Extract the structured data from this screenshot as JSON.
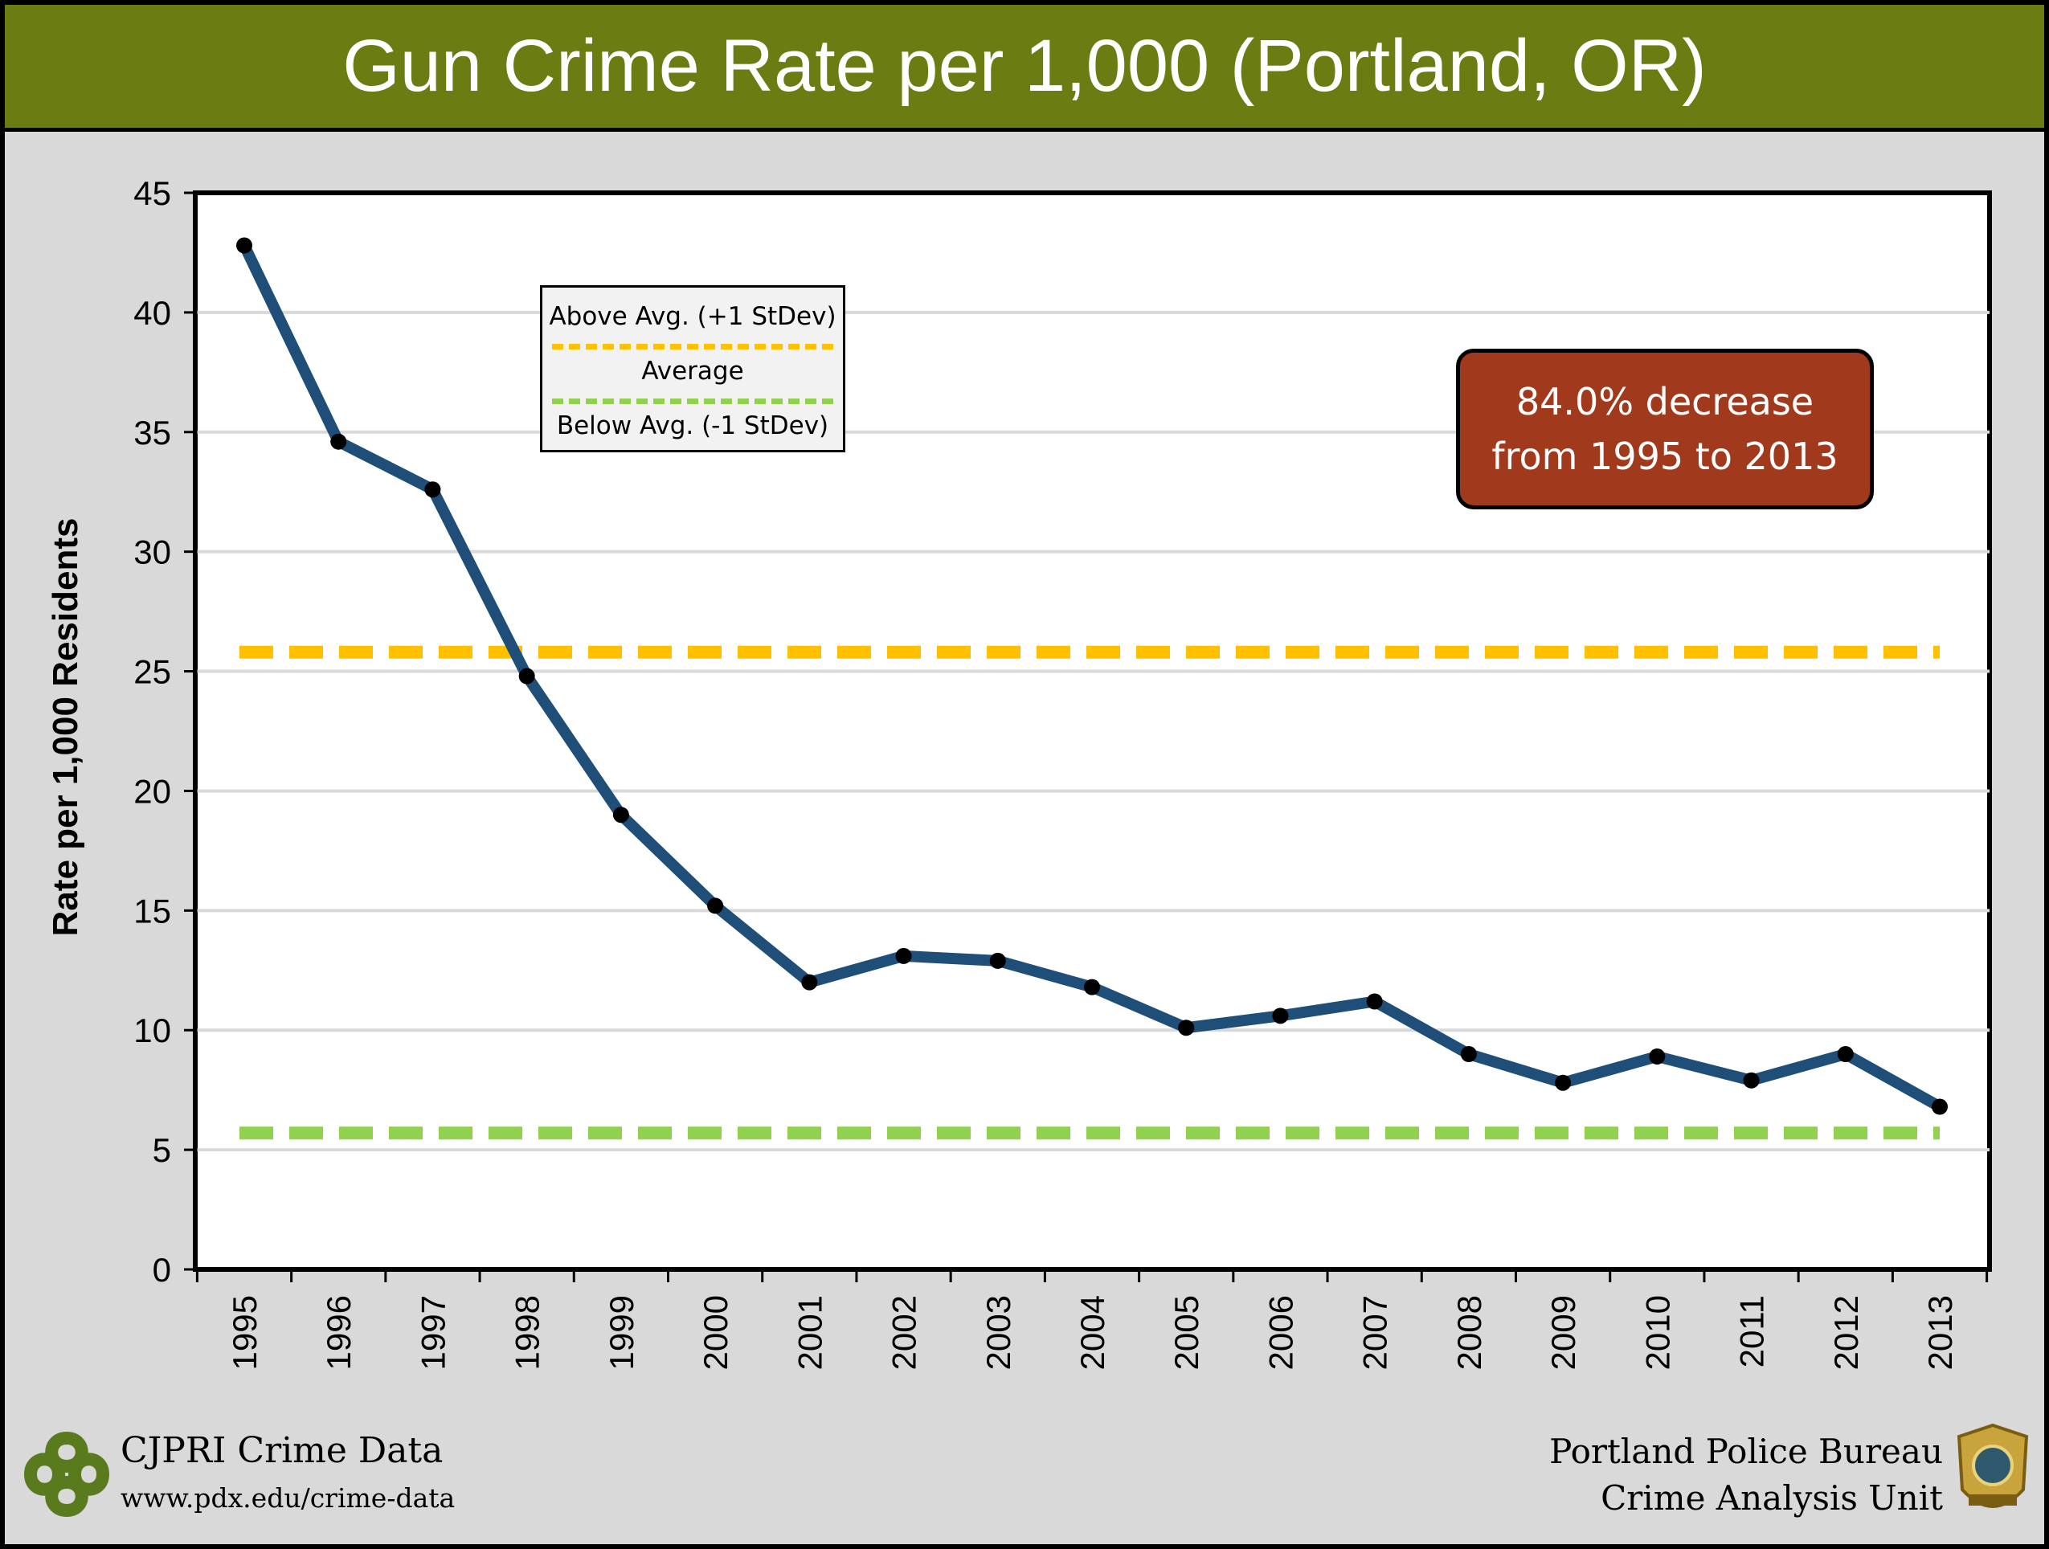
{
  "header": {
    "title": "Gun Crime Rate per 1,000 (Portland, OR)"
  },
  "chart_data": {
    "type": "line",
    "title": "Gun Crime Rate per 1,000 (Portland, OR)",
    "xlabel": "",
    "ylabel": "Rate per 1,000 Residents",
    "ylim": [
      0,
      45
    ],
    "yticks": [
      "0",
      "5",
      "10",
      "15",
      "20",
      "25",
      "30",
      "35",
      "40",
      "45"
    ],
    "x": [
      "1995",
      "1996",
      "1997",
      "1998",
      "1999",
      "2000",
      "2001",
      "2002",
      "2003",
      "2004",
      "2005",
      "2006",
      "2007",
      "2008",
      "2009",
      "2010",
      "2011",
      "2012",
      "2013"
    ],
    "series": [
      {
        "values": [
          42.8,
          34.6,
          32.6,
          24.8,
          19.0,
          15.2,
          12.0,
          13.1,
          12.9,
          11.8,
          10.1,
          10.6,
          11.2,
          9.0,
          7.8,
          8.9,
          7.9,
          9.0,
          6.8
        ],
        "color": "#1f4e79"
      }
    ],
    "reference_lines": [
      {
        "name": "Above Avg. (+1 StDev)",
        "value": 25.8,
        "color": "#ffc000",
        "style": "dashed"
      },
      {
        "name": "Below Avg. (-1 StDev)",
        "value": 5.7,
        "color": "#92d050",
        "style": "dashed"
      }
    ],
    "grid": true,
    "legend_position": "top-left",
    "legend": {
      "above_label": "Above Avg. (+1 StDev)",
      "average_label": "Average",
      "below_label": "Below Avg. (-1 StDev)",
      "above_color": "#ffc000",
      "below_color": "#92d050"
    },
    "annotation": {
      "line1": "84.0% decrease",
      "line2": "from 1995 to 2013"
    }
  },
  "footer": {
    "left_org": "CJPRI Crime Data",
    "left_url": "www.pdx.edu/crime-data",
    "right_line1": "Portland Police Bureau",
    "right_line2": "Crime Analysis Unit"
  },
  "colors": {
    "title_bar": "#6b7c12",
    "callout": "#a13a1d",
    "logo_green": "#5a7a1e",
    "badge_gold": "#c9a33b"
  },
  "icons": {
    "left_logo": "cjpri-logo-icon",
    "right_logo": "police-badge-icon"
  }
}
